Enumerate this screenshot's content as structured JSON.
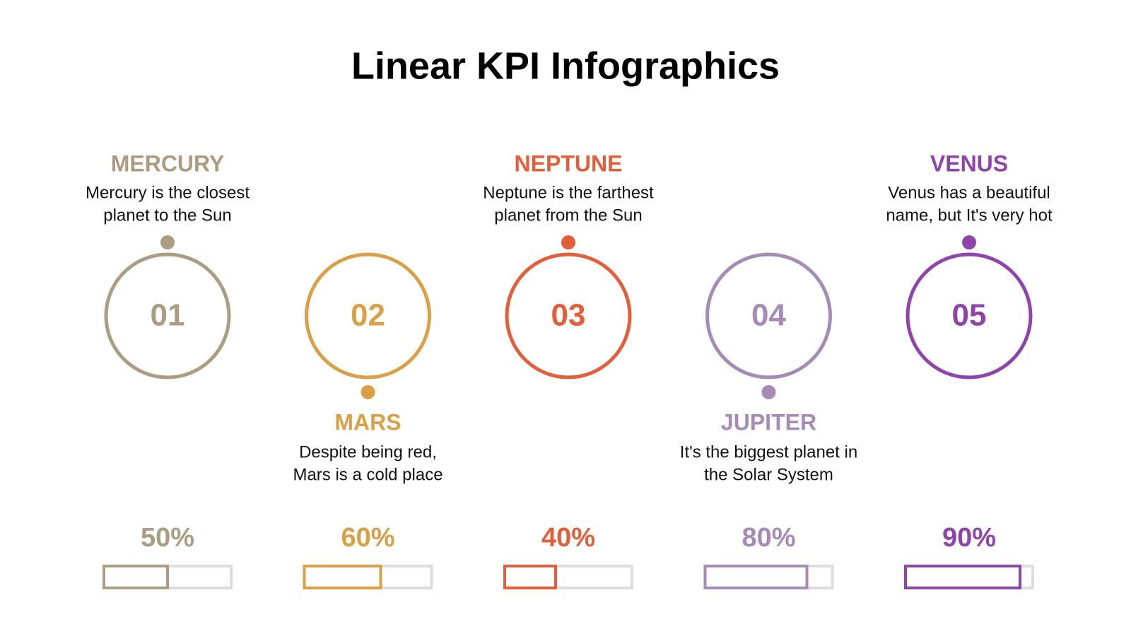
{
  "chart_data": {
    "type": "kpi",
    "title": "Linear KPI Infographics",
    "categories": [
      "MERCURY",
      "MARS",
      "NEPTUNE",
      "JUPITER",
      "VENUS"
    ],
    "numbers": [
      "01",
      "02",
      "03",
      "04",
      "05"
    ],
    "descriptions": [
      [
        "Mercury is the closest",
        "planet to the Sun"
      ],
      [
        "Despite being red,",
        "Mars is a cold place"
      ],
      [
        "Neptune is the farthest",
        "planet from the Sun"
      ],
      [
        "It's the biggest planet in",
        "the Solar System"
      ],
      [
        "Venus has a beautiful",
        "name, but It's very hot"
      ]
    ],
    "values": [
      50,
      60,
      40,
      80,
      90
    ],
    "value_labels": [
      "50%",
      "60%",
      "40%",
      "80%",
      "90%"
    ],
    "colors": [
      "#ab9c82",
      "#d9a046",
      "#e35f3b",
      "#a68bb6",
      "#8f43ad"
    ],
    "xlim": [
      0,
      100
    ]
  }
}
